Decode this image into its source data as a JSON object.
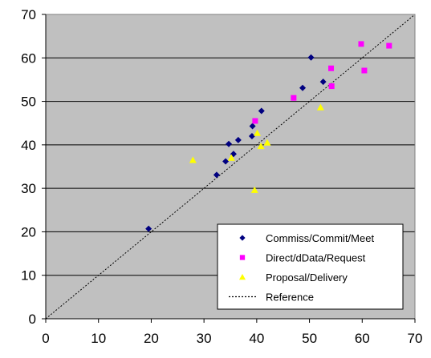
{
  "chart_data": {
    "type": "scatter",
    "title": "",
    "xlabel": "",
    "ylabel": "",
    "xlim": [
      0,
      70
    ],
    "ylim": [
      0,
      70
    ],
    "x_ticks": [
      "0",
      "10",
      "20",
      "30",
      "40",
      "50",
      "60",
      "70"
    ],
    "y_ticks": [
      "0",
      "10",
      "20",
      "30",
      "40",
      "50",
      "60",
      "70"
    ],
    "grid": "horizontal",
    "plot_background": "#c0c0c0",
    "legend_position": "bottom-right",
    "series": [
      {
        "name": "Commiss/Commit/Meet",
        "marker": "diamond",
        "color": "#000080",
        "points": [
          [
            19.5,
            20.7
          ],
          [
            32.4,
            33.1
          ],
          [
            34.1,
            36.2
          ],
          [
            34.7,
            40.2
          ],
          [
            35.6,
            37.9
          ],
          [
            36.5,
            41.1
          ],
          [
            39.1,
            42.0
          ],
          [
            39.2,
            44.3
          ],
          [
            40.9,
            47.8
          ],
          [
            48.7,
            53.1
          ],
          [
            50.3,
            60.1
          ],
          [
            52.6,
            54.5
          ]
        ]
      },
      {
        "name": "Direct/dData/Request",
        "marker": "square",
        "color": "#ff00ff",
        "points": [
          [
            39.7,
            45.5
          ],
          [
            47.0,
            50.8
          ],
          [
            54.1,
            57.6
          ],
          [
            54.2,
            53.5
          ],
          [
            59.8,
            63.2
          ],
          [
            60.4,
            57.1
          ],
          [
            65.1,
            62.8
          ]
        ]
      },
      {
        "name": "Proposal/Delivery",
        "marker": "triangle",
        "color": "#ffff00",
        "points": [
          [
            27.9,
            36.5
          ],
          [
            35.2,
            37.0
          ],
          [
            39.6,
            29.6
          ],
          [
            40.1,
            42.7
          ],
          [
            40.8,
            39.7
          ],
          [
            42.0,
            40.5
          ],
          [
            52.1,
            48.6
          ]
        ]
      },
      {
        "name": "Reference",
        "marker": "none",
        "line": "dotted",
        "color": "#000000",
        "points": [
          [
            0,
            0
          ],
          [
            70,
            70
          ]
        ]
      }
    ]
  }
}
